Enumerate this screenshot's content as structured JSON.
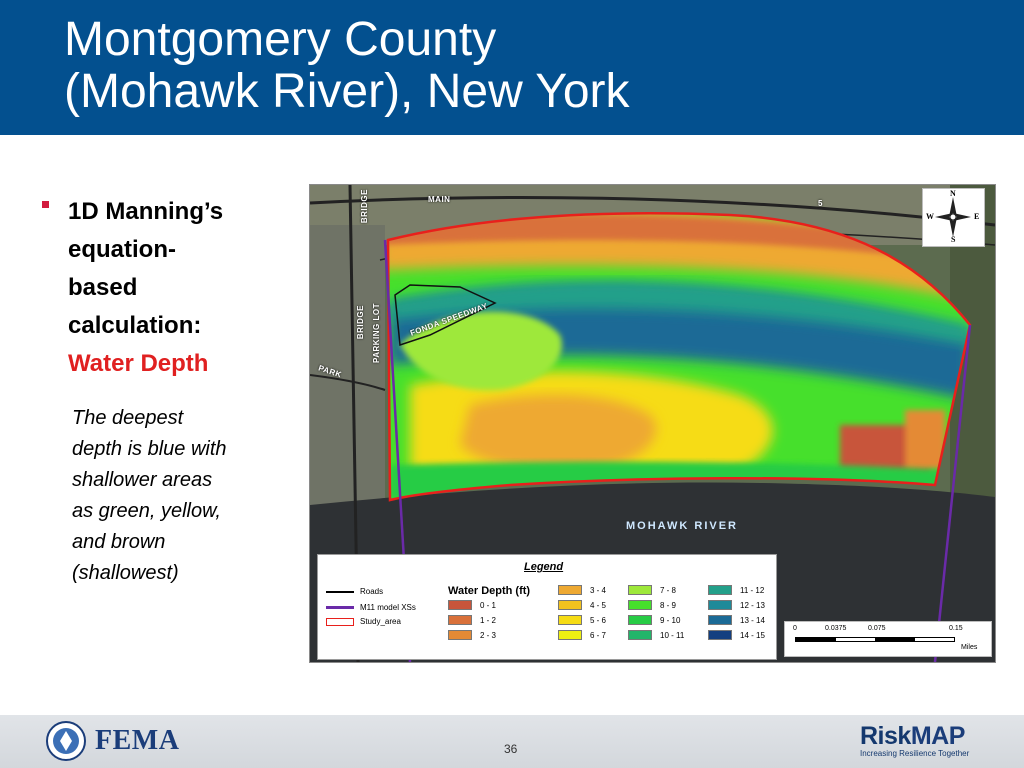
{
  "slide": {
    "title_line1": "Montgomery County",
    "title_line2": "(Mohawk River), New York",
    "page_number": "36"
  },
  "bullet": {
    "line1": "1D Manning’s",
    "line2": "equation-",
    "line3": "based",
    "line4": "calculation:",
    "highlight": "Water Depth",
    "highlight_color": "#e02020"
  },
  "note": {
    "line1": "The deepest",
    "line2": "depth is blue with",
    "line3": "shallower areas",
    "line4": "as green, yellow,",
    "line5": "and brown",
    "line6": "(shallowest)"
  },
  "map": {
    "labels": {
      "main": "MAIN",
      "bridge_top": "BRIDGE",
      "bridge_mid": "BRIDGE",
      "parking": "PARKING LOT",
      "park": "PARK",
      "speedway": "FONDA SPEEDWAY",
      "route": "5",
      "river": "MOHAWK RIVER"
    },
    "north_arrow": {
      "n": "N",
      "s": "S",
      "e": "E",
      "w": "W"
    },
    "legend": {
      "title": "Legend",
      "roads": "Roads",
      "xs": "M11 model XSs",
      "study": "Study_area",
      "depth_title": "Water Depth (ft)",
      "classes": [
        {
          "label": "0 - 1",
          "color": "#c8553b"
        },
        {
          "label": "1 - 2",
          "color": "#d9713a"
        },
        {
          "label": "2 - 3",
          "color": "#e48a35"
        },
        {
          "label": "3 - 4",
          "color": "#eea932"
        },
        {
          "label": "4 - 5",
          "color": "#f2c21f"
        },
        {
          "label": "5 - 6",
          "color": "#f6dc14"
        },
        {
          "label": "6 - 7",
          "color": "#eef012"
        },
        {
          "label": "7 - 8",
          "color": "#9ee83a"
        },
        {
          "label": "8 - 9",
          "color": "#46e02c"
        },
        {
          "label": "9 - 10",
          "color": "#27cc45"
        },
        {
          "label": "10 - 11",
          "color": "#22b56a"
        },
        {
          "label": "11 - 12",
          "color": "#23a08a"
        },
        {
          "label": "12 - 13",
          "color": "#1f8a99"
        },
        {
          "label": "13 - 14",
          "color": "#1b6a96"
        },
        {
          "label": "14 - 15",
          "color": "#133f80"
        }
      ]
    },
    "scale": {
      "ticks": [
        "0",
        "0.0375",
        "0.075",
        "0.15"
      ],
      "unit": "Miles"
    }
  },
  "footer": {
    "agency": "FEMA",
    "riskmap_risk": "Risk",
    "riskmap_map": "MAP",
    "riskmap_tagline": "Increasing Resilience Together"
  },
  "colors": {
    "header_bg": "#03508f",
    "bullet_marker": "#d21b3e",
    "study_outline": "#e8201c",
    "cross_section": "#6a2aa8"
  }
}
